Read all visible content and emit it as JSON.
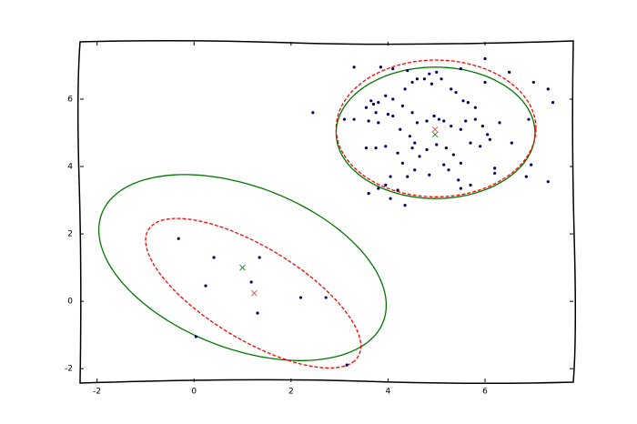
{
  "chart_data": {
    "type": "scatter",
    "xlim": [
      -2.35,
      7.82
    ],
    "ylim": [
      -2.4,
      7.7
    ],
    "xticks": [
      -2,
      0,
      2,
      4,
      6
    ],
    "yticks": [
      -2,
      0,
      2,
      4,
      6
    ],
    "series": [
      {
        "color": "#000066",
        "marker": "dot",
        "x": [
          -0.32,
          0.41,
          1.35,
          0.24,
          1.18,
          1.31,
          2.2,
          2.72,
          0.04,
          3.15,
          3.3,
          3.85,
          4.1,
          4.4,
          4.85,
          5.0,
          5.5,
          6.0,
          6.5,
          6.0,
          7.0,
          7.3,
          7.4,
          2.45,
          3.1,
          3.3,
          3.55,
          3.65,
          3.7,
          3.8,
          3.95,
          4.1,
          4.35,
          4.5,
          4.6,
          4.75,
          4.9,
          5.1,
          5.3,
          5.4,
          5.55,
          5.8,
          5.65,
          4.3,
          4.5,
          4.0,
          3.75,
          3.6,
          3.8,
          4.1,
          4.25,
          4.45,
          4.55,
          4.6,
          4.8,
          4.95,
          5.05,
          5.15,
          5.3,
          5.5,
          5.6,
          5.8,
          5.95,
          6.05,
          6.3,
          6.1,
          6.55,
          6.9,
          3.55,
          3.75,
          3.95,
          4.2,
          4.5,
          4.65,
          4.8,
          5.0,
          5.2,
          5.35,
          5.5,
          5.7,
          5.9,
          4.3,
          4.55,
          4.85,
          5.25,
          5.45,
          5.15,
          3.95,
          4.2,
          4.4,
          4.05,
          5.7,
          5.5,
          6.2,
          6.2,
          6.95,
          6.85,
          7.3,
          3.8,
          3.6,
          4.05,
          4.35
        ],
        "y": [
          1.86,
          1.3,
          1.3,
          0.46,
          0.57,
          -0.35,
          0.11,
          0.11,
          -1.05,
          -1.89,
          6.95,
          6.95,
          6.9,
          6.85,
          6.75,
          6.8,
          6.9,
          7.2,
          6.8,
          6.5,
          6.5,
          6.3,
          5.9,
          5.6,
          5.4,
          5.4,
          5.75,
          5.95,
          5.85,
          5.9,
          6.1,
          6.0,
          6.3,
          6.5,
          6.6,
          6.6,
          6.45,
          6.6,
          6.3,
          6.2,
          5.95,
          5.75,
          5.9,
          5.8,
          5.6,
          5.55,
          5.6,
          5.35,
          5.3,
          5.5,
          5.1,
          4.9,
          4.7,
          5.3,
          5.35,
          5.5,
          5.4,
          5.35,
          5.2,
          5.1,
          5.35,
          5.4,
          5.2,
          4.95,
          5.3,
          4.8,
          4.7,
          5.4,
          4.55,
          4.55,
          4.6,
          4.4,
          4.55,
          4.3,
          4.5,
          4.65,
          4.55,
          4.35,
          4.1,
          4.7,
          4.6,
          4.1,
          3.9,
          3.75,
          3.9,
          3.6,
          4.05,
          3.45,
          3.3,
          3.7,
          3.7,
          3.45,
          3.35,
          3.8,
          3.95,
          4.05,
          3.7,
          3.55,
          3.35,
          3.2,
          3.05,
          2.85
        ]
      },
      {
        "color": "#2e8b2e",
        "marker": "x",
        "x": [
          1.0,
          4.97
        ],
        "y": [
          1.0,
          4.95
        ]
      },
      {
        "color": "#e06060",
        "marker": "x",
        "x": [
          1.24,
          4.97
        ],
        "y": [
          0.24,
          5.1
        ]
      }
    ],
    "ellipses": [
      {
        "cx": 1.0,
        "cy": 1.0,
        "a": 3.4,
        "b": 2.2,
        "angle": -40,
        "color": "#007700",
        "style": "solid"
      },
      {
        "cx": 1.22,
        "cy": 0.24,
        "a": 2.9,
        "b": 1.2,
        "angle": -45,
        "color": "#ff0000",
        "style": "dashed"
      },
      {
        "cx": 4.98,
        "cy": 5.0,
        "a": 2.05,
        "b": 1.95,
        "angle": 0,
        "color": "#007700",
        "style": "solid"
      },
      {
        "cx": 4.99,
        "cy": 5.13,
        "a": 2.06,
        "b": 2.03,
        "angle": 0,
        "color": "#ff0000",
        "style": "dashed"
      }
    ]
  }
}
